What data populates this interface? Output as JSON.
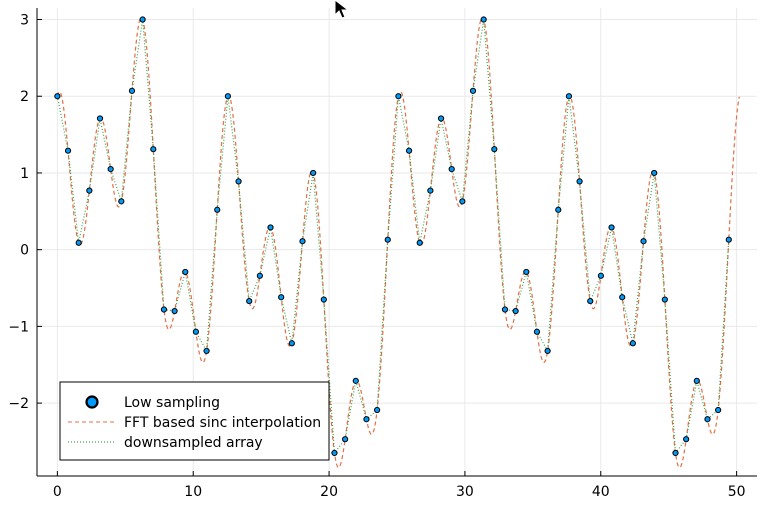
{
  "chart_data": {
    "type": "line",
    "title": "",
    "xlabel": "",
    "ylabel": "",
    "xlim": [
      -1.5,
      51.5
    ],
    "ylim": [
      -2.95,
      3.15
    ],
    "x_ticks": [
      0,
      10,
      20,
      30,
      40,
      50
    ],
    "y_ticks": [
      -2,
      -1,
      0,
      1,
      2,
      3
    ],
    "x_tick_labels": [
      "0",
      "10",
      "20",
      "30",
      "40",
      "50"
    ],
    "y_tick_labels": [
      "−2",
      "−1",
      "0",
      "1",
      "2",
      "3"
    ],
    "grid": true,
    "legend_position": "bottom-left",
    "sample_x": [
      0,
      0.7845,
      1.569,
      2.3535,
      3.138,
      3.9225,
      4.707,
      5.4915,
      6.276,
      7.0605,
      7.845,
      8.6295,
      9.414,
      10.1985,
      10.983,
      11.7675,
      12.552,
      13.3365,
      14.121,
      14.9055,
      15.69,
      16.4745,
      17.259,
      18.0435,
      18.828,
      19.6125,
      20.397,
      21.1815,
      21.966,
      22.7505,
      23.535,
      24.3195,
      25.104,
      25.8885,
      26.673,
      27.4575,
      28.242,
      29.0265,
      29.811,
      30.5955,
      31.38,
      32.1645,
      32.949,
      33.7335,
      34.518,
      35.3025,
      36.087,
      36.8715,
      37.656,
      38.4405,
      39.225,
      40.0095,
      40.794,
      41.5785,
      42.363,
      43.1475,
      43.932,
      44.7165,
      45.501,
      46.2855,
      47.07,
      47.8545,
      48.639,
      49.4235
    ],
    "series": [
      {
        "name": "Low sampling",
        "kind": "scatter",
        "color": "#009AFA",
        "y": [
          2.0,
          1.29,
          0.09,
          0.77,
          1.71,
          1.05,
          0.63,
          2.07,
          3.0,
          1.31,
          -0.78,
          -0.8,
          -0.29,
          -1.07,
          -1.32,
          0.52,
          2.0,
          0.89,
          -0.67,
          -0.34,
          0.29,
          -0.62,
          -1.22,
          0.11,
          1.0,
          -0.65,
          -2.65,
          -2.47,
          -1.71,
          -2.21,
          -2.09,
          0.13,
          2.0,
          1.29,
          0.09,
          0.77,
          1.71,
          1.05,
          0.63,
          2.07,
          3.0,
          1.31,
          -0.78,
          -0.8,
          -0.29,
          -1.07,
          -1.32,
          0.52,
          2.0,
          0.89,
          -0.67,
          -0.34,
          0.29,
          -0.62,
          -1.22,
          0.11,
          1.0,
          -0.65,
          -2.65,
          -2.47,
          -1.71,
          -2.21,
          -2.09,
          0.13
        ]
      },
      {
        "name": "FFT based sinc interpolation",
        "kind": "line",
        "dash": "dashed",
        "color": "#E26F46"
      },
      {
        "name": "downsampled array",
        "kind": "line",
        "dash": "dotted",
        "color": "#3DA44D"
      }
    ]
  },
  "colors": {
    "marker_fill": "#009AFA",
    "marker_stroke": "#000000",
    "grid": "#e9e9e9",
    "axis": "#000000",
    "legend_border": "#000000"
  },
  "icons": {
    "cursor": "mouse-pointer-icon"
  }
}
